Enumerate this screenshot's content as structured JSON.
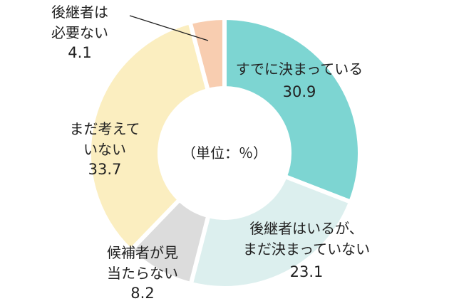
{
  "chart_data": {
    "type": "pie",
    "variant": "donut",
    "unit_label": "（単位：％）",
    "slices": [
      {
        "label_lines": [
          "すでに決まっている"
        ],
        "value": 30.9,
        "display_value": "30.9",
        "color": "#7dd5d2"
      },
      {
        "label_lines": [
          "後継者はいるが、",
          "まだ決まっていない"
        ],
        "value": 23.1,
        "display_value": "23.1",
        "color": "#dcefee"
      },
      {
        "label_lines": [
          "候補者が見",
          "当たらない"
        ],
        "value": 8.2,
        "display_value": "8.2",
        "color": "#dcdcdc"
      },
      {
        "label_lines": [
          "まだ考えて",
          "いない"
        ],
        "value": 33.7,
        "display_value": "33.7",
        "color": "#fbeec0"
      },
      {
        "label_lines": [
          "後継者は",
          "必要ない"
        ],
        "value": 4.1,
        "display_value": "4.1",
        "color": "#f8cdb0"
      }
    ],
    "legend": "none"
  }
}
